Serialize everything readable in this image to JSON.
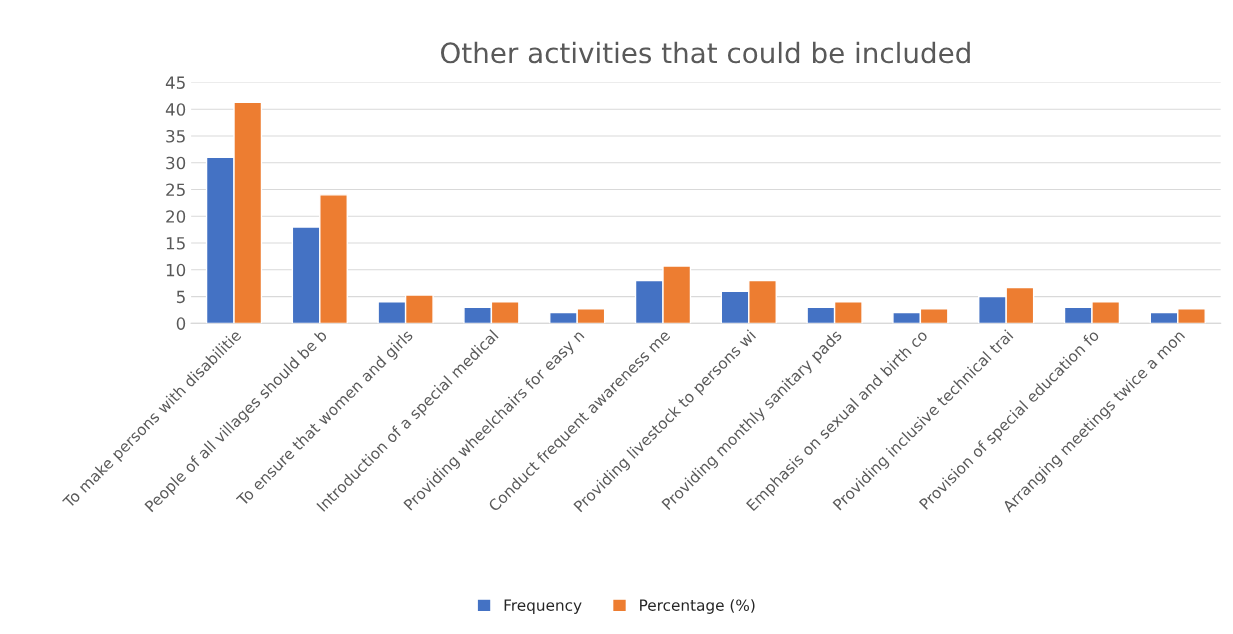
{
  "chart_data": {
    "type": "bar",
    "title": "Other activities that could be included",
    "categories": [
      "To make persons with disabilitie",
      "People of all villages should be b",
      "To ensure that women and girls",
      "Introduction of a special medical",
      "Providing wheelchairs for easy n",
      "Conduct frequent awareness me",
      "Providing livestock to persons wi",
      "Providing monthly sanitary pads",
      "Emphasis on sexual and birth co",
      "Providing inclusive technical trai",
      "Provision of special education fo",
      "Arranging meetings twice a mon"
    ],
    "series": [
      {
        "name": "Frequency",
        "color": "#4472c4",
        "values": [
          31,
          18,
          4,
          3,
          2,
          8,
          6,
          3,
          2,
          5,
          3,
          2
        ]
      },
      {
        "name": "Percentage (%)",
        "color": "#ed7d31",
        "values": [
          41.3,
          24,
          5.3,
          4,
          2.7,
          10.7,
          8,
          4,
          2.7,
          6.7,
          4,
          2.7
        ]
      }
    ],
    "ylim": [
      0,
      45
    ],
    "yticks": [
      0,
      5,
      10,
      15,
      20,
      25,
      30,
      35,
      40,
      45
    ],
    "grid": "y",
    "legend": "bottom"
  }
}
